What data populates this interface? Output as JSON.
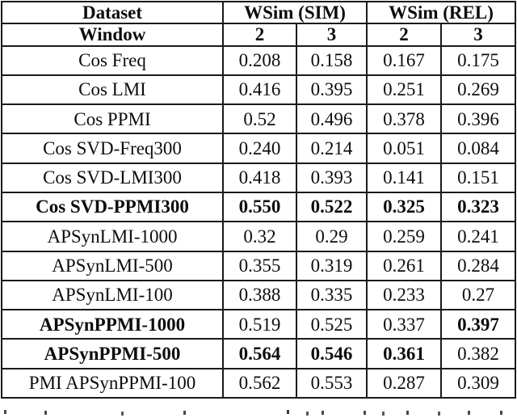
{
  "table": {
    "header": {
      "dataset_label": "Dataset",
      "group_sim": "WSim (SIM)",
      "group_rel": "WSim (REL)",
      "window_label": "Window",
      "windows": [
        "2",
        "3",
        "2",
        "3"
      ]
    },
    "rows": [
      {
        "label": "Cos Freq",
        "bold_label": false,
        "values": [
          "0.208",
          "0.158",
          "0.167",
          "0.175"
        ],
        "bold_values": [
          false,
          false,
          false,
          false
        ]
      },
      {
        "label": "Cos LMI",
        "bold_label": false,
        "values": [
          "0.416",
          "0.395",
          "0.251",
          "0.269"
        ],
        "bold_values": [
          false,
          false,
          false,
          false
        ]
      },
      {
        "label": "Cos PPMI",
        "bold_label": false,
        "values": [
          "0.52",
          "0.496",
          "0.378",
          "0.396"
        ],
        "bold_values": [
          false,
          false,
          false,
          false
        ]
      },
      {
        "label": "Cos SVD-Freq300",
        "bold_label": false,
        "values": [
          "0.240",
          "0.214",
          "0.051",
          "0.084"
        ],
        "bold_values": [
          false,
          false,
          false,
          false
        ]
      },
      {
        "label": "Cos SVD-LMI300",
        "bold_label": false,
        "values": [
          "0.418",
          "0.393",
          "0.141",
          "0.151"
        ],
        "bold_values": [
          false,
          false,
          false,
          false
        ]
      },
      {
        "label": "Cos SVD-PPMI300",
        "bold_label": true,
        "values": [
          "0.550",
          "0.522",
          "0.325",
          "0.323"
        ],
        "bold_values": [
          true,
          true,
          true,
          true
        ]
      },
      {
        "label": "APSynLMI-1000",
        "bold_label": false,
        "values": [
          "0.32",
          "0.29",
          "0.259",
          "0.241"
        ],
        "bold_values": [
          false,
          false,
          false,
          false
        ]
      },
      {
        "label": "APSynLMI-500",
        "bold_label": false,
        "values": [
          "0.355",
          "0.319",
          "0.261",
          "0.284"
        ],
        "bold_values": [
          false,
          false,
          false,
          false
        ]
      },
      {
        "label": "APSynLMI-100",
        "bold_label": false,
        "values": [
          "0.388",
          "0.335",
          "0.233",
          "0.27"
        ],
        "bold_values": [
          false,
          false,
          false,
          false
        ]
      },
      {
        "label": "APSynPPMI-1000",
        "bold_label": true,
        "values": [
          "0.519",
          "0.525",
          "0.337",
          "0.397"
        ],
        "bold_values": [
          false,
          false,
          false,
          true
        ]
      },
      {
        "label": "APSynPPMI-500",
        "bold_label": true,
        "values": [
          "0.564",
          "0.546",
          "0.361",
          "0.382"
        ],
        "bold_values": [
          true,
          true,
          true,
          false
        ]
      },
      {
        "label": "PMI APSynPPMI-100",
        "bold_label": false,
        "values": [
          "0.562",
          "0.553",
          "0.287",
          "0.309"
        ],
        "bold_values": [
          false,
          false,
          false,
          false
        ]
      }
    ]
  }
}
